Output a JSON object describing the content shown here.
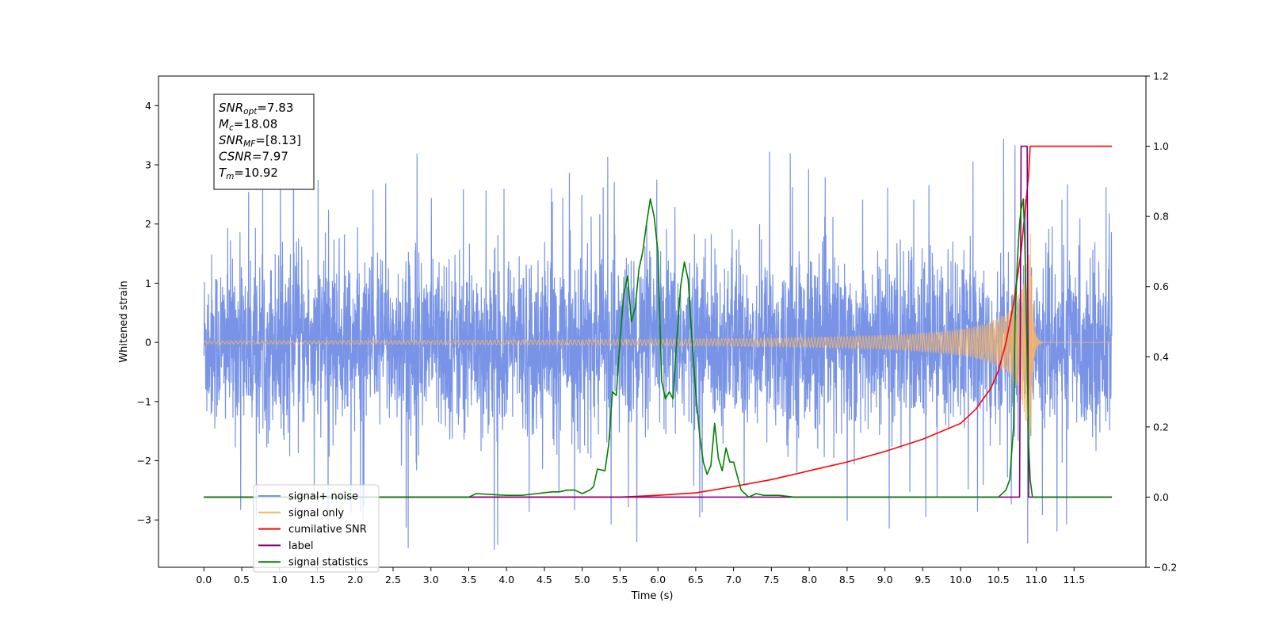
{
  "chart_data": {
    "type": "line",
    "xlabel": "Time (s)",
    "ylabel": "Whitened strain",
    "xlim": [
      -0.6,
      12.45
    ],
    "ylim": [
      -3.8,
      4.5
    ],
    "y2lim": [
      -0.2,
      1.2
    ],
    "x_ticks": [
      "0.0",
      "0.5",
      "1.0",
      "1.5",
      "2.0",
      "2.5",
      "3.0",
      "3.5",
      "4.0",
      "4.5",
      "5.0",
      "5.5",
      "6.0",
      "6.5",
      "7.0",
      "7.5",
      "8.0",
      "8.5",
      "9.0",
      "9.5",
      "10.0",
      "10.5",
      "11.0",
      "11.5"
    ],
    "y_ticks": [
      "−3",
      "−2",
      "−1",
      "0",
      "1",
      "2",
      "3",
      "4"
    ],
    "y2_ticks": [
      "−0.2",
      "0.0",
      "0.2",
      "0.4",
      "0.6",
      "0.8",
      "1.0",
      "1.2"
    ],
    "grid": false,
    "legend_position": "lower-left",
    "stats_box": [
      {
        "sym": "SNR",
        "sub": "opt",
        "value": "=7.83"
      },
      {
        "sym": "M",
        "sub": "c",
        "value": "=18.08"
      },
      {
        "sym": "SNR",
        "sub": "MF",
        "value": "=[8.13]"
      },
      {
        "sym": "CSNR",
        "sub": "",
        "value": "=7.97"
      },
      {
        "sym": "T",
        "sub": "m",
        "value": "=10.92"
      }
    ],
    "series": [
      {
        "name": "signal+ noise",
        "color": "#7994e6",
        "axis": "left",
        "kind": "noise",
        "x_range": [
          0,
          12
        ],
        "amplitude_typical": 1.4,
        "amplitude_peak": 3.5
      },
      {
        "name": "signal only",
        "color": "#f4b469",
        "axis": "left",
        "kind": "chirp",
        "x_range": [
          0,
          12
        ],
        "merger_time": 10.92,
        "peak_amplitude": 2.2
      },
      {
        "name": "cumilative SNR",
        "color": "#ff0000",
        "axis": "right",
        "x": [
          0,
          5.5,
          6.0,
          6.5,
          7.0,
          7.5,
          8.0,
          8.5,
          9.0,
          9.5,
          10.0,
          10.2,
          10.4,
          10.5,
          10.6,
          10.7,
          10.8,
          10.9,
          10.92,
          12.0
        ],
        "values": [
          0.0,
          0.0,
          0.005,
          0.012,
          0.03,
          0.05,
          0.075,
          0.1,
          0.13,
          0.165,
          0.21,
          0.25,
          0.31,
          0.36,
          0.44,
          0.55,
          0.7,
          0.92,
          1.0,
          1.0
        ]
      },
      {
        "name": "label",
        "color": "#800080",
        "axis": "right",
        "x": [
          0,
          10.78,
          10.8,
          10.88,
          10.9,
          12.0
        ],
        "values": [
          0.0,
          0.0,
          1.0,
          1.0,
          0.0,
          0.0
        ]
      },
      {
        "name": "signal statistics",
        "color": "#008000",
        "axis": "right",
        "x": [
          0,
          3.5,
          3.6,
          4.0,
          4.2,
          4.4,
          4.6,
          4.7,
          4.8,
          4.9,
          5.0,
          5.1,
          5.15,
          5.2,
          5.3,
          5.35,
          5.4,
          5.45,
          5.5,
          5.55,
          5.6,
          5.65,
          5.7,
          5.75,
          5.8,
          5.85,
          5.9,
          5.95,
          6.0,
          6.05,
          6.1,
          6.15,
          6.2,
          6.25,
          6.3,
          6.35,
          6.4,
          6.45,
          6.5,
          6.55,
          6.6,
          6.65,
          6.7,
          6.75,
          6.8,
          6.85,
          6.9,
          6.95,
          7.0,
          7.05,
          7.1,
          7.15,
          7.2,
          7.3,
          7.4,
          7.5,
          7.6,
          7.8,
          8.0,
          8.5,
          9.0,
          9.5,
          10.0,
          10.5,
          10.6,
          10.65,
          10.7,
          10.72,
          10.75,
          10.78,
          10.8,
          10.83,
          10.85,
          10.88,
          10.9,
          10.92,
          10.95,
          11.0,
          12.0
        ],
        "values": [
          0.0,
          0.0,
          0.01,
          0.005,
          0.005,
          0.01,
          0.015,
          0.015,
          0.02,
          0.02,
          0.01,
          0.02,
          0.03,
          0.08,
          0.075,
          0.15,
          0.3,
          0.29,
          0.45,
          0.58,
          0.63,
          0.5,
          0.54,
          0.65,
          0.7,
          0.78,
          0.85,
          0.8,
          0.7,
          0.33,
          0.28,
          0.3,
          0.28,
          0.45,
          0.6,
          0.67,
          0.62,
          0.45,
          0.3,
          0.18,
          0.1,
          0.065,
          0.09,
          0.21,
          0.11,
          0.075,
          0.14,
          0.1,
          0.1,
          0.06,
          0.02,
          0.01,
          0.0,
          0.01,
          0.005,
          0.005,
          0.005,
          0.0,
          0.0,
          0.0,
          0.0,
          0.0,
          0.0,
          0.0,
          0.02,
          0.05,
          0.2,
          0.5,
          0.67,
          0.78,
          0.82,
          0.85,
          0.72,
          0.4,
          0.15,
          0.05,
          0.0,
          0.0,
          0.0
        ]
      }
    ]
  }
}
